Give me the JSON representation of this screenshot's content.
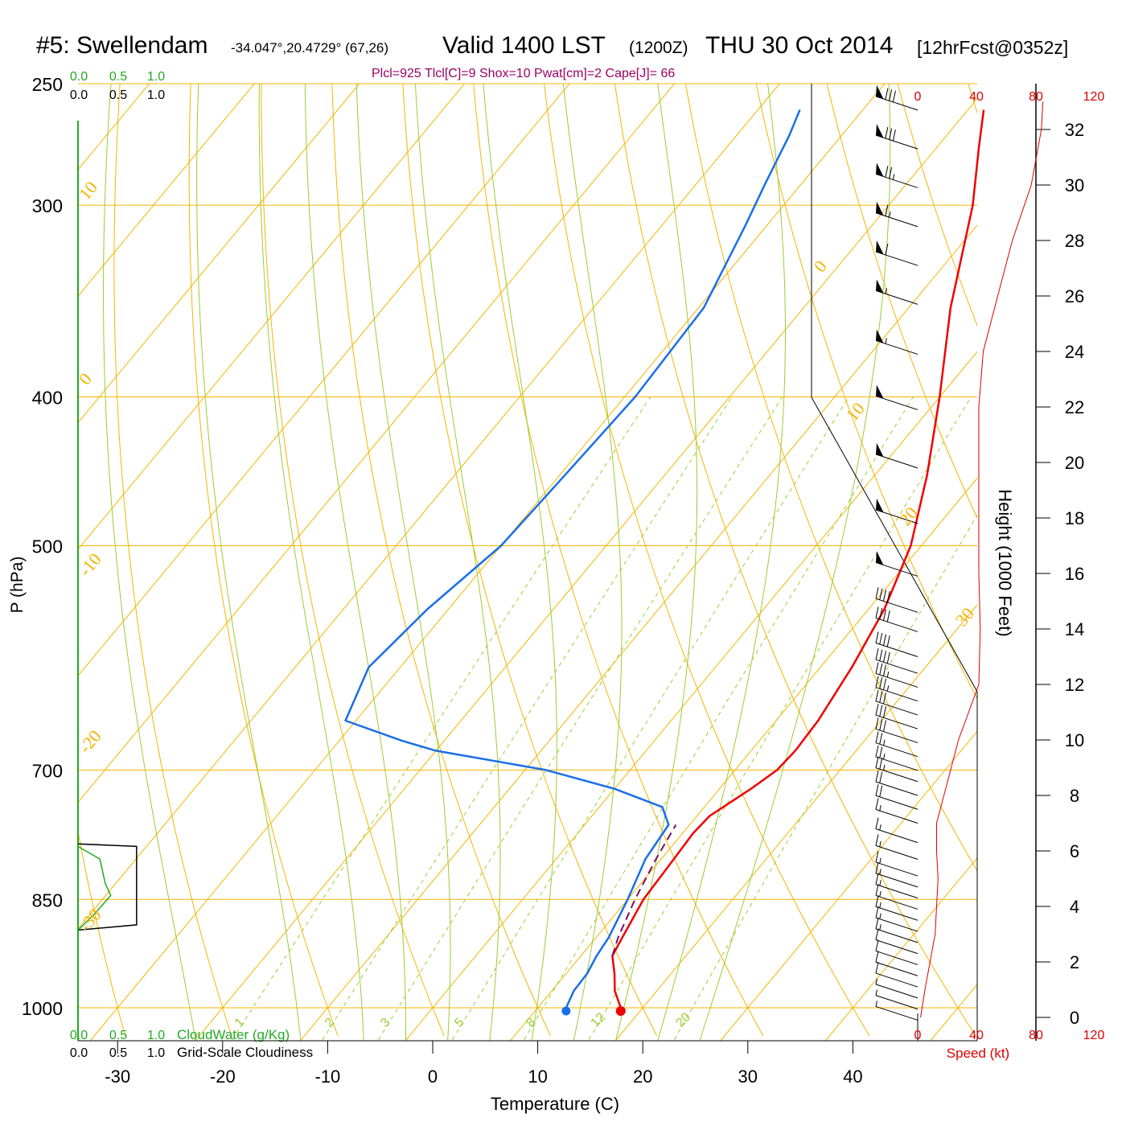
{
  "header": {
    "station": "#5: Swellendam",
    "coords": "-34.047°,20.4729° (67,26)",
    "valid": "Valid 1400 LST",
    "utc": "(1200Z)",
    "date": "THU 30 Oct 2014",
    "forecast": "[12hrFcst@0352z]",
    "indices": "Plcl=925 Tlcl[C]=9 Shox=10 Pwat[cm]=2 Cape[J]= 66"
  },
  "colors": {
    "isotherm": "#f5b400",
    "dry_adiabat": "#f5b400",
    "moist_adiabat": "#9acd32",
    "mixing_ratio": "#9acd32",
    "temperature": "#ee0000",
    "dewpoint": "#1a6fe8",
    "parcel": "#7a1060",
    "cloudwater": "#22aa22",
    "speed": "#dd0000",
    "indices": "#990066"
  },
  "chart_data": {
    "type": "line",
    "title": "#5: Swellendam  Valid 1400 LST (1200Z) THU 30 Oct 2014",
    "xlabel": "Temperature (C)",
    "ylabel": "P (hPa)",
    "x_ticks": [
      "-30",
      "-20",
      "-10",
      "0",
      "10",
      "20",
      "30",
      "40"
    ],
    "p_ticks": [
      "250",
      "300",
      "400",
      "500",
      "700",
      "850",
      "1000"
    ],
    "isotherm_labels": [
      "10",
      "0",
      "-10",
      "-20",
      "-30",
      "0",
      "10",
      "20",
      "30"
    ],
    "mixing_ratio_labels": [
      "1",
      "2",
      "3",
      "5",
      "8",
      "12",
      "20"
    ],
    "series": [
      {
        "name": "Temperature",
        "points": [
          [
            1000,
            17.9
          ],
          [
            975,
            16.0
          ],
          [
            950,
            14.6
          ],
          [
            925,
            13.0
          ],
          [
            900,
            12.5
          ],
          [
            850,
            11.5
          ],
          [
            800,
            11.2
          ],
          [
            770,
            11.0
          ],
          [
            750,
            11.2
          ],
          [
            720,
            13.0
          ],
          [
            700,
            14.0
          ],
          [
            680,
            14.2
          ],
          [
            650,
            14.0
          ],
          [
            600,
            13.0
          ],
          [
            550,
            11.5
          ],
          [
            500,
            9.0
          ],
          [
            450,
            5.0
          ],
          [
            400,
            0.0
          ],
          [
            350,
            -6.0
          ],
          [
            300,
            -12.0
          ],
          [
            275,
            -16.0
          ],
          [
            260,
            -18.5
          ]
        ]
      },
      {
        "name": "Dewpoint",
        "points": [
          [
            1000,
            12.7
          ],
          [
            975,
            12.1
          ],
          [
            950,
            12.0
          ],
          [
            925,
            11.5
          ],
          [
            900,
            11.2
          ],
          [
            850,
            10.0
          ],
          [
            800,
            8.5
          ],
          [
            760,
            8.0
          ],
          [
            740,
            6.0
          ],
          [
            720,
            0.0
          ],
          [
            700,
            -8.0
          ],
          [
            680,
            -20.0
          ],
          [
            670,
            -24.0
          ],
          [
            650,
            -31.0
          ],
          [
            600,
            -33.0
          ],
          [
            550,
            -32.0
          ],
          [
            500,
            -30.0
          ],
          [
            450,
            -29.5
          ],
          [
            400,
            -29.0
          ],
          [
            350,
            -29.5
          ],
          [
            310,
            -32.0
          ],
          [
            290,
            -33.5
          ],
          [
            270,
            -35.0
          ],
          [
            260,
            -36.0
          ]
        ]
      },
      {
        "name": "Parcel",
        "points": [
          [
            925,
            13.0
          ],
          [
            900,
            12.1
          ],
          [
            850,
            10.7
          ],
          [
            800,
            9.5
          ],
          [
            760,
            8.7
          ]
        ]
      }
    ],
    "cloud": {
      "xlabel_cloudwater": "CloudWater (g/Kg)",
      "xlabel_cloudiness": "Grid-Scale Cloudiness",
      "ticks": [
        "0.0",
        "0.5",
        "1.0"
      ],
      "cloudiness": [
        [
          890,
          0.0
        ],
        [
          883,
          0.75
        ],
        [
          870,
          0.75
        ],
        [
          785,
          0.75
        ],
        [
          782,
          0.0
        ]
      ],
      "cloudwater": [
        [
          890,
          0.0
        ],
        [
          870,
          0.2
        ],
        [
          845,
          0.42
        ],
        [
          830,
          0.35
        ],
        [
          800,
          0.28
        ],
        [
          785,
          0.0
        ]
      ]
    },
    "wind": {
      "speed_axis_label": "Speed (kt)",
      "speed_ticks": [
        "0",
        "40",
        "80",
        "120"
      ],
      "height_axis_label": "Height (1000 Feet)",
      "height_ticks": [
        "0",
        "2",
        "4",
        "6",
        "8",
        "10",
        "12",
        "14",
        "16",
        "18",
        "20",
        "22",
        "24",
        "26",
        "28",
        "30",
        "32"
      ],
      "speed_profile": [
        [
          0,
          2
        ],
        [
          1,
          5
        ],
        [
          3,
          12
        ],
        [
          5,
          14
        ],
        [
          6,
          13
        ],
        [
          7,
          13
        ],
        [
          8,
          18
        ],
        [
          10,
          28
        ],
        [
          12,
          42
        ],
        [
          14,
          43
        ],
        [
          16,
          42
        ],
        [
          18,
          42
        ],
        [
          20,
          42
        ],
        [
          22,
          42
        ],
        [
          24,
          45
        ],
        [
          26,
          55
        ],
        [
          28,
          65
        ],
        [
          30,
          78
        ],
        [
          32,
          85
        ],
        [
          33,
          86
        ]
      ],
      "barbs": [
        {
          "h": 32.7,
          "s": 80
        },
        {
          "h": 31.3,
          "s": 80
        },
        {
          "h": 29.9,
          "s": 75
        },
        {
          "h": 28.5,
          "s": 65
        },
        {
          "h": 27.1,
          "s": 60
        },
        {
          "h": 25.7,
          "s": 55
        },
        {
          "h": 23.9,
          "s": 55
        },
        {
          "h": 21.9,
          "s": 50
        },
        {
          "h": 19.8,
          "s": 50
        },
        {
          "h": 17.8,
          "s": 50
        },
        {
          "h": 15.9,
          "s": 50
        },
        {
          "h": 14.6,
          "s": 40
        },
        {
          "h": 13.9,
          "s": 40
        },
        {
          "h": 13.0,
          "s": 40
        },
        {
          "h": 12.4,
          "s": 40
        },
        {
          "h": 11.9,
          "s": 35
        },
        {
          "h": 11.4,
          "s": 35
        },
        {
          "h": 10.9,
          "s": 30
        },
        {
          "h": 10.4,
          "s": 30
        },
        {
          "h": 9.9,
          "s": 30
        },
        {
          "h": 9.4,
          "s": 25
        },
        {
          "h": 8.9,
          "s": 25
        },
        {
          "h": 8.5,
          "s": 25
        },
        {
          "h": 8.0,
          "s": 20
        },
        {
          "h": 7.5,
          "s": 20
        },
        {
          "h": 7.0,
          "s": 15
        },
        {
          "h": 6.3,
          "s": 15
        },
        {
          "h": 5.7,
          "s": 15
        },
        {
          "h": 5.1,
          "s": 15
        },
        {
          "h": 4.7,
          "s": 15
        },
        {
          "h": 4.3,
          "s": 15
        },
        {
          "h": 3.9,
          "s": 15
        },
        {
          "h": 3.5,
          "s": 15
        },
        {
          "h": 3.1,
          "s": 15
        },
        {
          "h": 2.7,
          "s": 15
        },
        {
          "h": 2.3,
          "s": 10
        },
        {
          "h": 1.9,
          "s": 10
        },
        {
          "h": 1.5,
          "s": 10
        },
        {
          "h": 1.1,
          "s": 10
        },
        {
          "h": 0.7,
          "s": 5
        },
        {
          "h": 0.3,
          "s": 5
        },
        {
          "h": -0.1,
          "s": 5
        }
      ]
    }
  }
}
